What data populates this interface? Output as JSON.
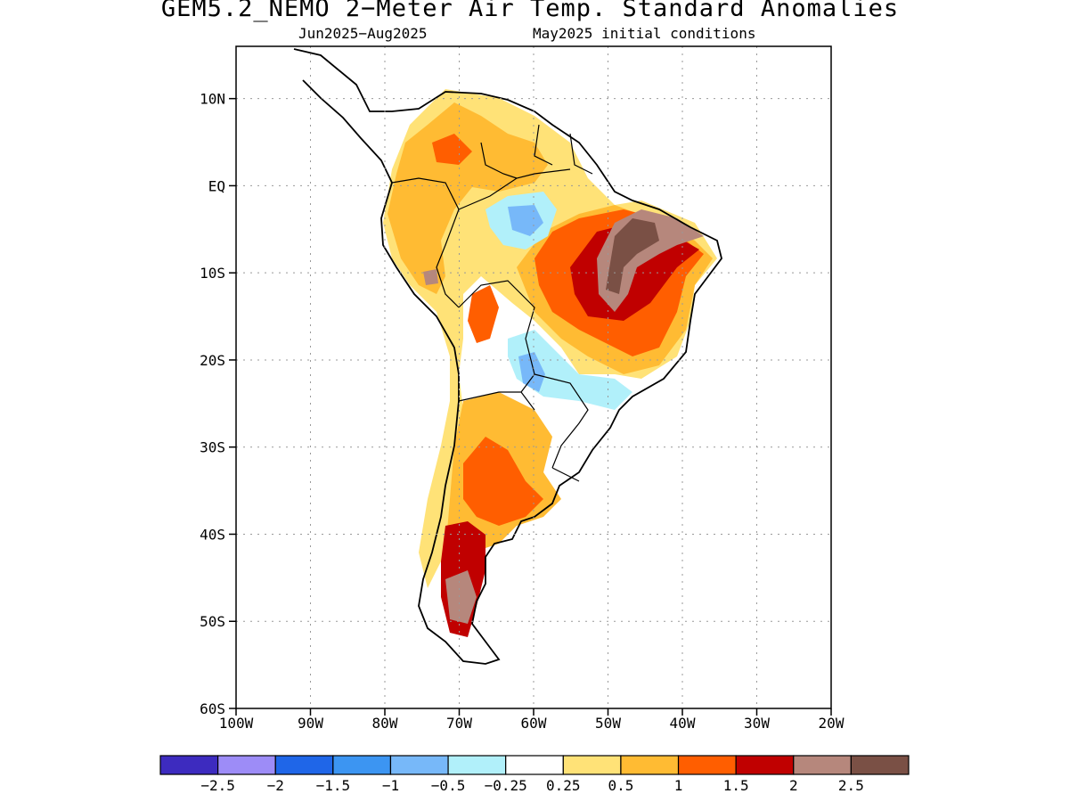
{
  "title": "GEM5.2_NEMO 2−Meter Air Temp. Standard Anomalies",
  "subtitle_left": "Jun2025−Aug2025",
  "subtitle_right": "May2025 initial conditions",
  "map": {
    "lon_range": [
      -100,
      -20
    ],
    "lat_range": [
      -60,
      16
    ],
    "lat_ticks": [
      {
        "lat": 10,
        "label": "10N"
      },
      {
        "lat": 0,
        "label": "EQ"
      },
      {
        "lat": -10,
        "label": "10S"
      },
      {
        "lat": -20,
        "label": "20S"
      },
      {
        "lat": -30,
        "label": "30S"
      },
      {
        "lat": -40,
        "label": "40S"
      },
      {
        "lat": -50,
        "label": "50S"
      },
      {
        "lat": -60,
        "label": "60S"
      }
    ],
    "lon_ticks": [
      {
        "lon": -100,
        "label": "100W"
      },
      {
        "lon": -90,
        "label": "90W"
      },
      {
        "lon": -80,
        "label": "80W"
      },
      {
        "lon": -70,
        "label": "70W"
      },
      {
        "lon": -60,
        "label": "60W"
      },
      {
        "lon": -50,
        "label": "50W"
      },
      {
        "lon": -40,
        "label": "40W"
      },
      {
        "lon": -30,
        "label": "30W"
      },
      {
        "lon": -20,
        "label": "20W"
      }
    ],
    "grid": true
  },
  "colorbar": {
    "colors": [
      "#3d2bbf",
      "#9d8cf7",
      "#1f66e8",
      "#3c95f2",
      "#77b8f9",
      "#b1f0fa",
      "#ffffff",
      "#ffe277",
      "#ffbb33",
      "#ff5e00",
      "#c00000",
      "#b6877c",
      "#7a5045"
    ],
    "labels": [
      "−2.5",
      "−2",
      "−1.5",
      "−1",
      "−0.5",
      "−0.25",
      "0.25",
      "0.5",
      "1",
      "1.5",
      "2",
      "2.5"
    ]
  }
}
